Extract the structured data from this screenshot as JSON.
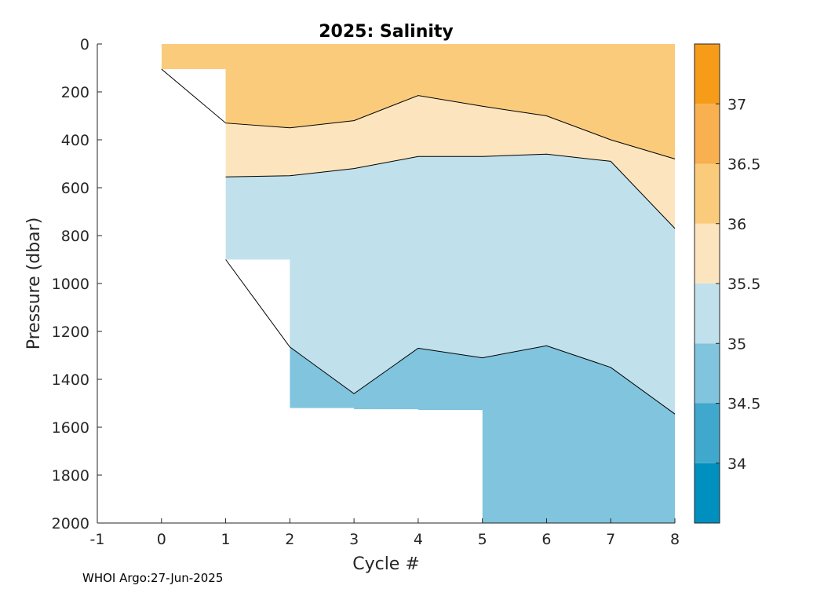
{
  "chart_data": {
    "type": "heatmap",
    "title": "2025:  Salinity",
    "xlabel": "Cycle #",
    "ylabel": "Pressure (dbar)",
    "xlim": [
      -1,
      8
    ],
    "ylim": [
      2000,
      0
    ],
    "y_reversed": true,
    "x_ticks": [
      -1,
      0,
      1,
      2,
      3,
      4,
      5,
      6,
      7,
      8
    ],
    "y_ticks": [
      0,
      200,
      400,
      600,
      800,
      1000,
      1200,
      1400,
      1600,
      1800,
      2000
    ],
    "colorbar": {
      "range": [
        33.5,
        37.5
      ],
      "ticks": [
        34,
        34.5,
        35,
        35.5,
        36,
        36.5,
        37
      ],
      "levels": [
        {
          "from": 33.5,
          "to": 34.0,
          "color": "#0090c0"
        },
        {
          "from": 34.0,
          "to": 34.5,
          "color": "#40a8cc"
        },
        {
          "from": 34.5,
          "to": 35.0,
          "color": "#80c4de"
        },
        {
          "from": 35.0,
          "to": 35.5,
          "color": "#c0e0ec"
        },
        {
          "from": 35.5,
          "to": 36.0,
          "color": "#fce5be"
        },
        {
          "from": 36.0,
          "to": 36.5,
          "color": "#fbcb7c"
        },
        {
          "from": 36.5,
          "to": 37.0,
          "color": "#f8b050"
        },
        {
          "from": 37.0,
          "to": 37.5,
          "color": "#f79c18"
        }
      ]
    },
    "profile_depths": [
      {
        "cycle": 0,
        "max_pressure": 105
      },
      {
        "cycle": 1,
        "max_pressure": 900
      },
      {
        "cycle": 2,
        "max_pressure": 1520
      },
      {
        "cycle": 3,
        "max_pressure": 1525
      },
      {
        "cycle": 4,
        "max_pressure": 1528
      },
      {
        "cycle": 5,
        "max_pressure": 2000
      },
      {
        "cycle": 6,
        "max_pressure": 2000
      },
      {
        "cycle": 7,
        "max_pressure": 2000
      },
      {
        "cycle": 8,
        "max_pressure": 2000
      }
    ],
    "contour_bands": [
      {
        "level_from": 36.0,
        "level_to": 36.5,
        "bottom": [
          [
            0,
            105
          ],
          [
            1,
            330
          ],
          [
            2,
            350
          ],
          [
            3,
            320
          ],
          [
            4,
            215
          ],
          [
            5,
            260
          ],
          [
            6,
            300
          ],
          [
            7,
            400
          ],
          [
            8,
            480
          ]
        ]
      },
      {
        "level_from": 35.5,
        "level_to": 36.0,
        "bottom": [
          [
            1,
            555
          ],
          [
            2,
            550
          ],
          [
            3,
            520
          ],
          [
            4,
            470
          ],
          [
            5,
            470
          ],
          [
            6,
            460
          ],
          [
            7,
            490
          ],
          [
            8,
            770
          ]
        ]
      },
      {
        "level_from": 35.0,
        "level_to": 35.5,
        "bottom": [
          [
            1,
            900
          ],
          [
            2,
            1265
          ],
          [
            3,
            1460
          ],
          [
            4,
            1270
          ],
          [
            5,
            1310
          ],
          [
            6,
            1260
          ],
          [
            7,
            1350
          ],
          [
            8,
            1545
          ]
        ]
      },
      {
        "level_from": 34.5,
        "level_to": 35.0,
        "bottom": [
          [
            2,
            1520
          ],
          [
            3,
            1525
          ],
          [
            4,
            1528
          ],
          [
            5,
            1530
          ],
          [
            5,
            2000
          ],
          [
            8,
            2000
          ]
        ]
      }
    ],
    "footer": "WHOI Argo:27-Jun-2025"
  }
}
